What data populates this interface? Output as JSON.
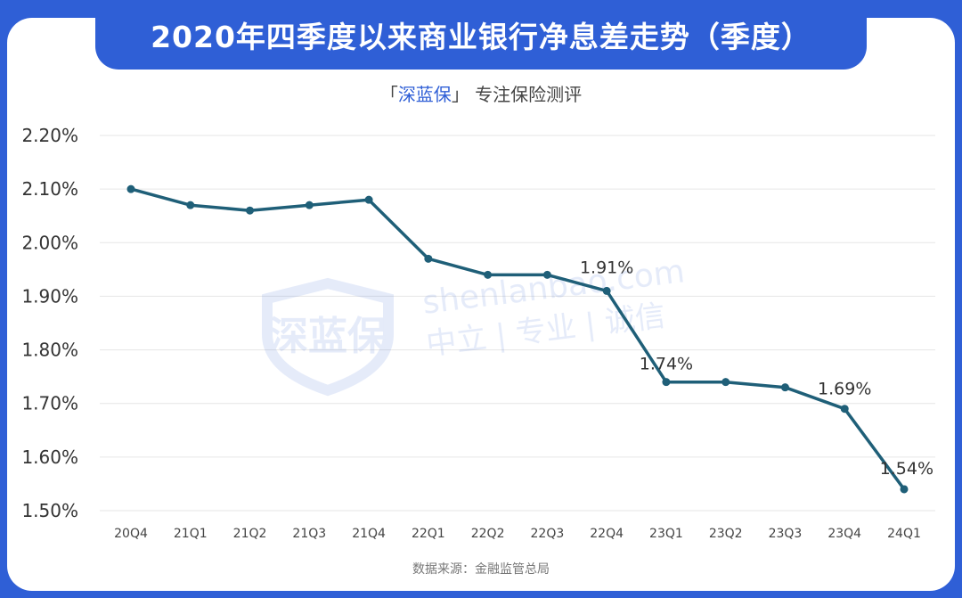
{
  "title": "2020年四季度以来商业银行净息差走势（季度）",
  "brand": {
    "open_bracket": "「",
    "name": "深蓝保",
    "close_bracket": "」",
    "tagline": "专注保险测评"
  },
  "watermark": {
    "logo_text": "深蓝保",
    "domain": "shenlanbao.com",
    "motto": "中立 | 专业 | 诚信"
  },
  "source": "数据来源：金融监管总局",
  "colors": {
    "line": "#1f5f78",
    "banner": "#2f5fd6",
    "grid": "#e6e6e6"
  },
  "chart_data": {
    "type": "line",
    "categories": [
      "20Q4",
      "21Q1",
      "21Q2",
      "21Q3",
      "21Q4",
      "22Q1",
      "22Q2",
      "22Q3",
      "22Q4",
      "23Q1",
      "23Q2",
      "23Q3",
      "23Q4",
      "24Q1"
    ],
    "series": [
      {
        "values": [
          2.1,
          2.07,
          2.06,
          2.07,
          2.08,
          1.97,
          1.94,
          1.94,
          1.91,
          1.74,
          1.74,
          1.73,
          1.69,
          1.54
        ]
      }
    ],
    "yticks": [
      "2.20%",
      "2.10%",
      "2.00%",
      "1.90%",
      "1.80%",
      "1.70%",
      "1.60%",
      "1.50%"
    ],
    "ylim": [
      1.5,
      2.2
    ],
    "grid": true,
    "annotations": [
      {
        "index": 8,
        "text": "1.91%"
      },
      {
        "index": 9,
        "text": "1.74%"
      },
      {
        "index": 12,
        "text": "1.69%"
      },
      {
        "index": 13,
        "text": "1.54%"
      }
    ],
    "title": "",
    "xlabel": "",
    "ylabel": ""
  }
}
